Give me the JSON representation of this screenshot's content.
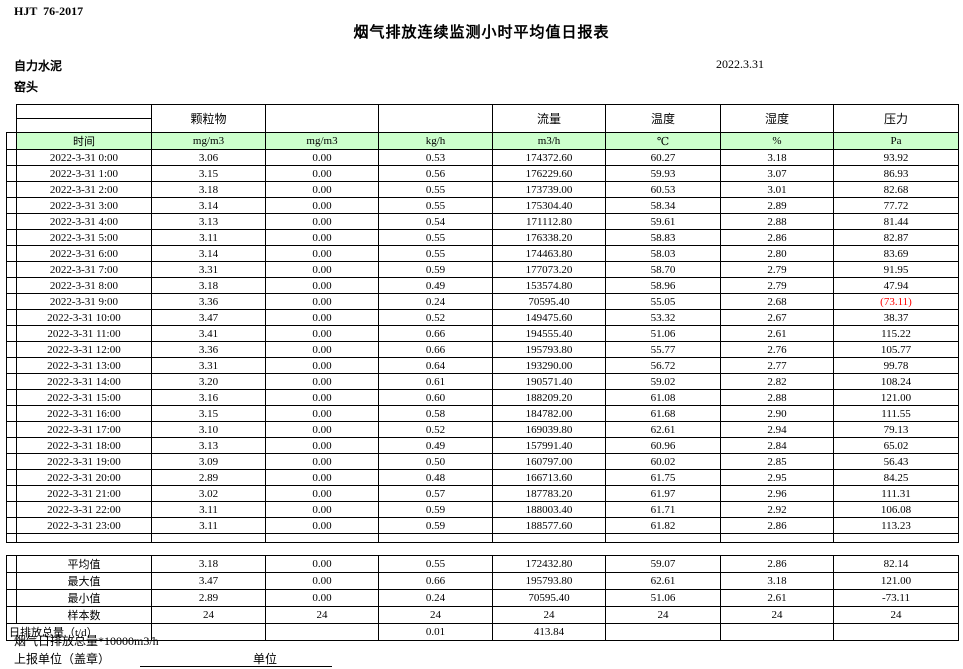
{
  "page": {
    "doc_code": "HJT  76-2017",
    "title": "烟气排放连续监测小时平均值日报表",
    "company": "自力水泥",
    "station": "窑头",
    "date": "2022.3.31"
  },
  "table": {
    "group_headers": [
      "颗粒物",
      "",
      "",
      "流量",
      "温度",
      "湿度",
      "压力"
    ],
    "unit_row": [
      "时间",
      "mg/m3",
      "mg/m3",
      "kg/h",
      "m3/h",
      "℃",
      "%",
      "Pa"
    ],
    "rows": [
      [
        "2022-3-31 0:00",
        "3.06",
        "0.00",
        "0.53",
        "174372.60",
        "60.27",
        "3.18",
        "93.92"
      ],
      [
        "2022-3-31 1:00",
        "3.15",
        "0.00",
        "0.56",
        "176229.60",
        "59.93",
        "3.07",
        "86.93"
      ],
      [
        "2022-3-31 2:00",
        "3.18",
        "0.00",
        "0.55",
        "173739.00",
        "60.53",
        "3.01",
        "82.68"
      ],
      [
        "2022-3-31 3:00",
        "3.14",
        "0.00",
        "0.55",
        "175304.40",
        "58.34",
        "2.89",
        "77.72"
      ],
      [
        "2022-3-31 4:00",
        "3.13",
        "0.00",
        "0.54",
        "171112.80",
        "59.61",
        "2.88",
        "81.44"
      ],
      [
        "2022-3-31 5:00",
        "3.11",
        "0.00",
        "0.55",
        "176338.20",
        "58.83",
        "2.86",
        "82.87"
      ],
      [
        "2022-3-31 6:00",
        "3.14",
        "0.00",
        "0.55",
        "174463.80",
        "58.03",
        "2.80",
        "83.69"
      ],
      [
        "2022-3-31 7:00",
        "3.31",
        "0.00",
        "0.59",
        "177073.20",
        "58.70",
        "2.79",
        "91.95"
      ],
      [
        "2022-3-31 8:00",
        "3.18",
        "0.00",
        "0.49",
        "153574.80",
        "58.96",
        "2.79",
        "47.94"
      ],
      [
        "2022-3-31 9:00",
        "3.36",
        "0.00",
        "0.24",
        "70595.40",
        "55.05",
        "2.68",
        "(73.11)"
      ],
      [
        "2022-3-31 10:00",
        "3.47",
        "0.00",
        "0.52",
        "149475.60",
        "53.32",
        "2.67",
        "38.37"
      ],
      [
        "2022-3-31 11:00",
        "3.41",
        "0.00",
        "0.66",
        "194555.40",
        "51.06",
        "2.61",
        "115.22"
      ],
      [
        "2022-3-31 12:00",
        "3.36",
        "0.00",
        "0.66",
        "195793.80",
        "55.77",
        "2.76",
        "105.77"
      ],
      [
        "2022-3-31 13:00",
        "3.31",
        "0.00",
        "0.64",
        "193290.00",
        "56.72",
        "2.77",
        "99.78"
      ],
      [
        "2022-3-31 14:00",
        "3.20",
        "0.00",
        "0.61",
        "190571.40",
        "59.02",
        "2.82",
        "108.24"
      ],
      [
        "2022-3-31 15:00",
        "3.16",
        "0.00",
        "0.60",
        "188209.20",
        "61.08",
        "2.88",
        "121.00"
      ],
      [
        "2022-3-31 16:00",
        "3.15",
        "0.00",
        "0.58",
        "184782.00",
        "61.68",
        "2.90",
        "111.55"
      ],
      [
        "2022-3-31 17:00",
        "3.10",
        "0.00",
        "0.52",
        "169039.80",
        "62.61",
        "2.94",
        "79.13"
      ],
      [
        "2022-3-31 18:00",
        "3.13",
        "0.00",
        "0.49",
        "157991.40",
        "60.96",
        "2.84",
        "65.02"
      ],
      [
        "2022-3-31 19:00",
        "3.09",
        "0.00",
        "0.50",
        "160797.00",
        "60.02",
        "2.85",
        "56.43"
      ],
      [
        "2022-3-31 20:00",
        "2.89",
        "0.00",
        "0.48",
        "166713.60",
        "61.75",
        "2.95",
        "84.25"
      ],
      [
        "2022-3-31 21:00",
        "3.02",
        "0.00",
        "0.57",
        "187783.20",
        "61.97",
        "2.96",
        "111.31"
      ],
      [
        "2022-3-31 22:00",
        "3.11",
        "0.00",
        "0.59",
        "188003.40",
        "61.71",
        "2.92",
        "106.08"
      ],
      [
        "2022-3-31 23:00",
        "3.11",
        "0.00",
        "0.59",
        "188577.60",
        "61.82",
        "2.86",
        "113.23"
      ]
    ],
    "red_cells": [
      [
        9,
        7
      ]
    ],
    "summary": [
      {
        "label": "平均值",
        "merge_label": false,
        "values": [
          "3.18",
          "0.00",
          "0.55",
          "172432.80",
          "59.07",
          "2.86",
          "82.14"
        ]
      },
      {
        "label": "最大值",
        "merge_label": false,
        "values": [
          "3.47",
          "0.00",
          "0.66",
          "195793.80",
          "62.61",
          "3.18",
          "121.00"
        ]
      },
      {
        "label": "最小值",
        "merge_label": false,
        "values": [
          "2.89",
          "0.00",
          "0.24",
          "70595.40",
          "51.06",
          "2.61",
          "-73.11"
        ]
      },
      {
        "label": "样本数",
        "merge_label": false,
        "values": [
          "24",
          "24",
          "24",
          "24",
          "24",
          "24",
          "24"
        ]
      },
      {
        "label": "日排放总量（t/d）",
        "merge_label": true,
        "values": [
          "",
          "",
          "0.01",
          "413.84",
          "",
          "",
          ""
        ]
      }
    ]
  },
  "footer": {
    "note": "烟气日排放总量*10000m3/h",
    "report_unit_label": "上报单位（盖章）",
    "unit_label": "单位"
  },
  "colors": {
    "header_green": "#ccffcc",
    "negative_red": "#ff0000",
    "border": "#000000"
  }
}
